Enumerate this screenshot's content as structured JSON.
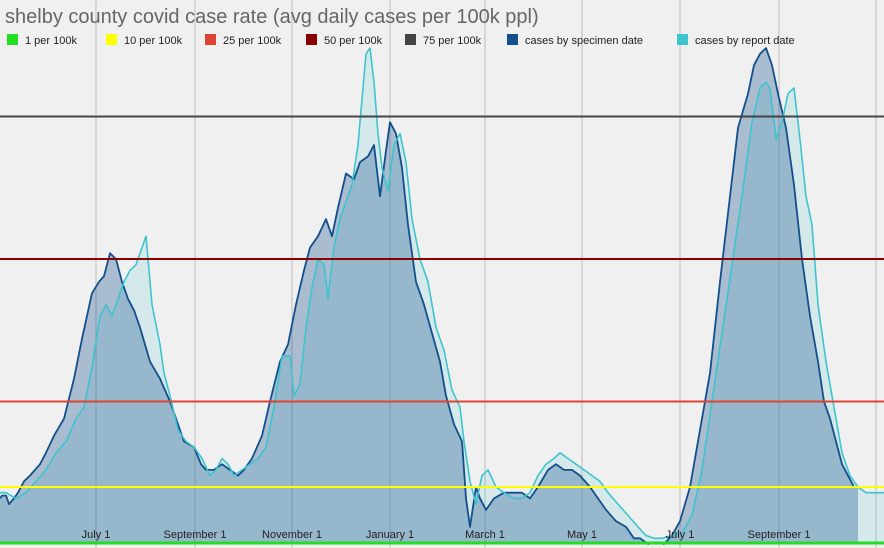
{
  "chart_data": {
    "type": "area",
    "title": "shelby county covid case rate (avg daily cases per 100k ppl)",
    "xlabel": "",
    "ylabel": "",
    "ylim": [
      0,
      90
    ],
    "legend_position": "top",
    "grid": "vertical",
    "x_ticks": [
      "July 1",
      "September 1",
      "November 1",
      "January 1",
      "March 1",
      "May 1",
      "July 1",
      "September 1"
    ],
    "reference_lines": [
      {
        "name": "1 per 100k",
        "value": 1,
        "color": "#22dd22"
      },
      {
        "name": "10 per 100k",
        "value": 10,
        "color": "#ffff00"
      },
      {
        "name": "25 per 100k",
        "value": 25,
        "color": "#dd4433"
      },
      {
        "name": "50 per 100k",
        "value": 50,
        "color": "#8b0000"
      },
      {
        "name": "75 per 100k",
        "value": 75,
        "color": "#444444"
      }
    ],
    "series": [
      {
        "name": "cases by specimen date",
        "color": "#124f8c",
        "points": [
          [
            0,
            8
          ],
          [
            2,
            8.5
          ],
          [
            6,
            8.5
          ],
          [
            9,
            7
          ],
          [
            14,
            8
          ],
          [
            18,
            9
          ],
          [
            24,
            11
          ],
          [
            30,
            12
          ],
          [
            40,
            14
          ],
          [
            46,
            16
          ],
          [
            54,
            19
          ],
          [
            64,
            22
          ],
          [
            74,
            29
          ],
          [
            82,
            36
          ],
          [
            92,
            44
          ],
          [
            99,
            46
          ],
          [
            104,
            47
          ],
          [
            110,
            51
          ],
          [
            116,
            50
          ],
          [
            122,
            46
          ],
          [
            128,
            43
          ],
          [
            134,
            41
          ],
          [
            140,
            38
          ],
          [
            150,
            32
          ],
          [
            160,
            29
          ],
          [
            170,
            25
          ],
          [
            176,
            22
          ],
          [
            184,
            18
          ],
          [
            194,
            17
          ],
          [
            201,
            14
          ],
          [
            206,
            13
          ],
          [
            214,
            13
          ],
          [
            222,
            14
          ],
          [
            230,
            13
          ],
          [
            238,
            12
          ],
          [
            244,
            13
          ],
          [
            252,
            15
          ],
          [
            262,
            19
          ],
          [
            270,
            25
          ],
          [
            280,
            32
          ],
          [
            288,
            35
          ],
          [
            296,
            42
          ],
          [
            304,
            48
          ],
          [
            310,
            52
          ],
          [
            318,
            54
          ],
          [
            326,
            57
          ],
          [
            332,
            54
          ],
          [
            338,
            59
          ],
          [
            346,
            65
          ],
          [
            354,
            64
          ],
          [
            360,
            67
          ],
          [
            368,
            68
          ],
          [
            374,
            70
          ],
          [
            380,
            61
          ],
          [
            386,
            69
          ],
          [
            390,
            74
          ],
          [
            396,
            72
          ],
          [
            402,
            66
          ],
          [
            408,
            56
          ],
          [
            416,
            46
          ],
          [
            424,
            42
          ],
          [
            432,
            37
          ],
          [
            440,
            32
          ],
          [
            446,
            26
          ],
          [
            454,
            21
          ],
          [
            462,
            18
          ],
          [
            466,
            8
          ],
          [
            470,
            3
          ],
          [
            476,
            10
          ],
          [
            480,
            8
          ],
          [
            486,
            6
          ],
          [
            494,
            8
          ],
          [
            504,
            9
          ],
          [
            514,
            9
          ],
          [
            522,
            9
          ],
          [
            530,
            8
          ],
          [
            538,
            10
          ],
          [
            548,
            13
          ],
          [
            556,
            14
          ],
          [
            564,
            13
          ],
          [
            572,
            13
          ],
          [
            580,
            12
          ],
          [
            590,
            10
          ],
          [
            598,
            8
          ],
          [
            606,
            6
          ],
          [
            616,
            4
          ],
          [
            626,
            3
          ],
          [
            634,
            1
          ],
          [
            640,
            1
          ],
          [
            648,
            0
          ],
          [
            656,
            0.3
          ],
          [
            664,
            0
          ],
          [
            672,
            1.5
          ],
          [
            680,
            4
          ],
          [
            690,
            10
          ],
          [
            700,
            20
          ],
          [
            710,
            30
          ],
          [
            720,
            46
          ],
          [
            730,
            61
          ],
          [
            738,
            73
          ],
          [
            748,
            79
          ],
          [
            754,
            84
          ],
          [
            760,
            86
          ],
          [
            766,
            87
          ],
          [
            772,
            84
          ],
          [
            778,
            79
          ],
          [
            786,
            73
          ],
          [
            794,
            63
          ],
          [
            802,
            50
          ],
          [
            810,
            40
          ],
          [
            818,
            32
          ],
          [
            824,
            25
          ],
          [
            830,
            22
          ],
          [
            836,
            18
          ],
          [
            842,
            14
          ],
          [
            848,
            12
          ],
          [
            854,
            10
          ],
          [
            858,
            10
          ]
        ]
      },
      {
        "name": "cases by report date",
        "color": "#3ec4cf",
        "points": [
          [
            0,
            9
          ],
          [
            6,
            9
          ],
          [
            16,
            8
          ],
          [
            26,
            9
          ],
          [
            36,
            11
          ],
          [
            46,
            13
          ],
          [
            56,
            16
          ],
          [
            66,
            18
          ],
          [
            76,
            22
          ],
          [
            84,
            24
          ],
          [
            92,
            31
          ],
          [
            100,
            40
          ],
          [
            106,
            42
          ],
          [
            112,
            40
          ],
          [
            118,
            43
          ],
          [
            124,
            46
          ],
          [
            130,
            48
          ],
          [
            136,
            49
          ],
          [
            142,
            52
          ],
          [
            146,
            54
          ],
          [
            152,
            42
          ],
          [
            160,
            35
          ],
          [
            164,
            30
          ],
          [
            170,
            26
          ],
          [
            178,
            20
          ],
          [
            186,
            18
          ],
          [
            194,
            17
          ],
          [
            202,
            15
          ],
          [
            210,
            12
          ],
          [
            216,
            13
          ],
          [
            222,
            15
          ],
          [
            228,
            14
          ],
          [
            234,
            12
          ],
          [
            242,
            13
          ],
          [
            250,
            14
          ],
          [
            258,
            15
          ],
          [
            266,
            17
          ],
          [
            274,
            24
          ],
          [
            282,
            33
          ],
          [
            290,
            33
          ],
          [
            294,
            26
          ],
          [
            300,
            28
          ],
          [
            306,
            38
          ],
          [
            312,
            45
          ],
          [
            318,
            50
          ],
          [
            324,
            49
          ],
          [
            328,
            43
          ],
          [
            334,
            52
          ],
          [
            340,
            57
          ],
          [
            346,
            60
          ],
          [
            352,
            63
          ],
          [
            358,
            70
          ],
          [
            362,
            78
          ],
          [
            366,
            86
          ],
          [
            370,
            87
          ],
          [
            374,
            81
          ],
          [
            378,
            72
          ],
          [
            382,
            66
          ],
          [
            388,
            62
          ],
          [
            394,
            70
          ],
          [
            400,
            72
          ],
          [
            406,
            67
          ],
          [
            412,
            57
          ],
          [
            420,
            50
          ],
          [
            428,
            46
          ],
          [
            436,
            38
          ],
          [
            444,
            34
          ],
          [
            452,
            27
          ],
          [
            460,
            24
          ],
          [
            464,
            18
          ],
          [
            470,
            11
          ],
          [
            476,
            7
          ],
          [
            482,
            12
          ],
          [
            488,
            13
          ],
          [
            496,
            10
          ],
          [
            504,
            9
          ],
          [
            514,
            8
          ],
          [
            522,
            8
          ],
          [
            530,
            9
          ],
          [
            538,
            12
          ],
          [
            546,
            14
          ],
          [
            554,
            15
          ],
          [
            560,
            16
          ],
          [
            568,
            15
          ],
          [
            576,
            14
          ],
          [
            584,
            13
          ],
          [
            592,
            12
          ],
          [
            600,
            11
          ],
          [
            608,
            9
          ],
          [
            618,
            7
          ],
          [
            628,
            5
          ],
          [
            638,
            3
          ],
          [
            646,
            1.5
          ],
          [
            654,
            1
          ],
          [
            662,
            1
          ],
          [
            672,
            1.5
          ],
          [
            682,
            2
          ],
          [
            692,
            5
          ],
          [
            702,
            13
          ],
          [
            712,
            25
          ],
          [
            722,
            37
          ],
          [
            732,
            49
          ],
          [
            742,
            61
          ],
          [
            752,
            74
          ],
          [
            760,
            80
          ],
          [
            766,
            81
          ],
          [
            770,
            80
          ],
          [
            776,
            71
          ],
          [
            782,
            74
          ],
          [
            788,
            79
          ],
          [
            794,
            80
          ],
          [
            800,
            71
          ],
          [
            806,
            61
          ],
          [
            812,
            56
          ],
          [
            818,
            42
          ],
          [
            826,
            32
          ],
          [
            834,
            24
          ],
          [
            842,
            16
          ],
          [
            850,
            12
          ],
          [
            858,
            10
          ],
          [
            866,
            9
          ],
          [
            874,
            9
          ],
          [
            884,
            9
          ]
        ]
      }
    ]
  }
}
